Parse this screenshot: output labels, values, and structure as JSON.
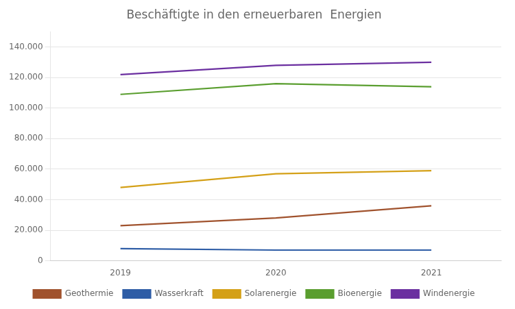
{
  "chart_data": {
    "type": "line",
    "title": "Beschäftigte in den erneuerbaren  Energien",
    "x": [
      2019,
      2020,
      2021
    ],
    "xlim": [
      2018.55,
      2021.45
    ],
    "xticks": [
      2019,
      2020,
      2021
    ],
    "ylim": [
      0,
      150000
    ],
    "yticks": [
      0,
      {
        "value": 20000,
        "label": "20.000"
      },
      {
        "value": 40000,
        "label": "40.000"
      },
      {
        "value": 60000,
        "label": "60.000"
      },
      {
        "value": 80000,
        "label": "80.000"
      },
      {
        "value": 100000,
        "label": "100.000"
      },
      {
        "value": 120000,
        "label": "120.000"
      },
      {
        "value": 140000,
        "label": "140.000"
      }
    ],
    "series": [
      {
        "name": "Geothermie",
        "color": "#A0522D",
        "values": [
          23000,
          28000,
          36000
        ]
      },
      {
        "name": "Wasserkraft",
        "color": "#2E5DA6",
        "values": [
          8000,
          7000,
          7000
        ]
      },
      {
        "name": "Solarenergie",
        "color": "#D4A017",
        "values": [
          48000,
          57000,
          59000
        ]
      },
      {
        "name": "Bioenergie",
        "color": "#5A9E2F",
        "values": [
          109000,
          116000,
          114000
        ]
      },
      {
        "name": "Windenergie",
        "color": "#6B2FA0",
        "values": [
          122000,
          128000,
          130000
        ]
      }
    ],
    "grid": "y",
    "legend": "bottom"
  }
}
